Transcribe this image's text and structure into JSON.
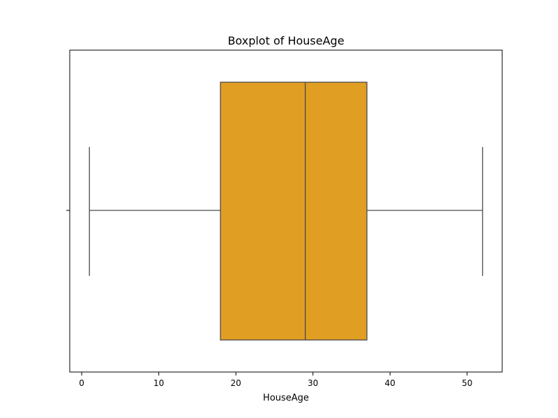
{
  "chart_data": {
    "type": "box",
    "title": "Boxplot of HouseAge",
    "xlabel": "HouseAge",
    "ylabel": "",
    "orientation": "horizontal",
    "xlim": [
      -1.55,
      54.55
    ],
    "x_ticks": [
      0,
      10,
      20,
      30,
      40,
      50
    ],
    "grid": false,
    "series": [
      {
        "whisker_low": 1,
        "q1": 18,
        "median": 29,
        "q3": 37,
        "whisker_high": 52
      }
    ],
    "colors": {
      "box_fill": "#e09e22",
      "line": "#4a4a4a",
      "axes": "#000000"
    }
  }
}
